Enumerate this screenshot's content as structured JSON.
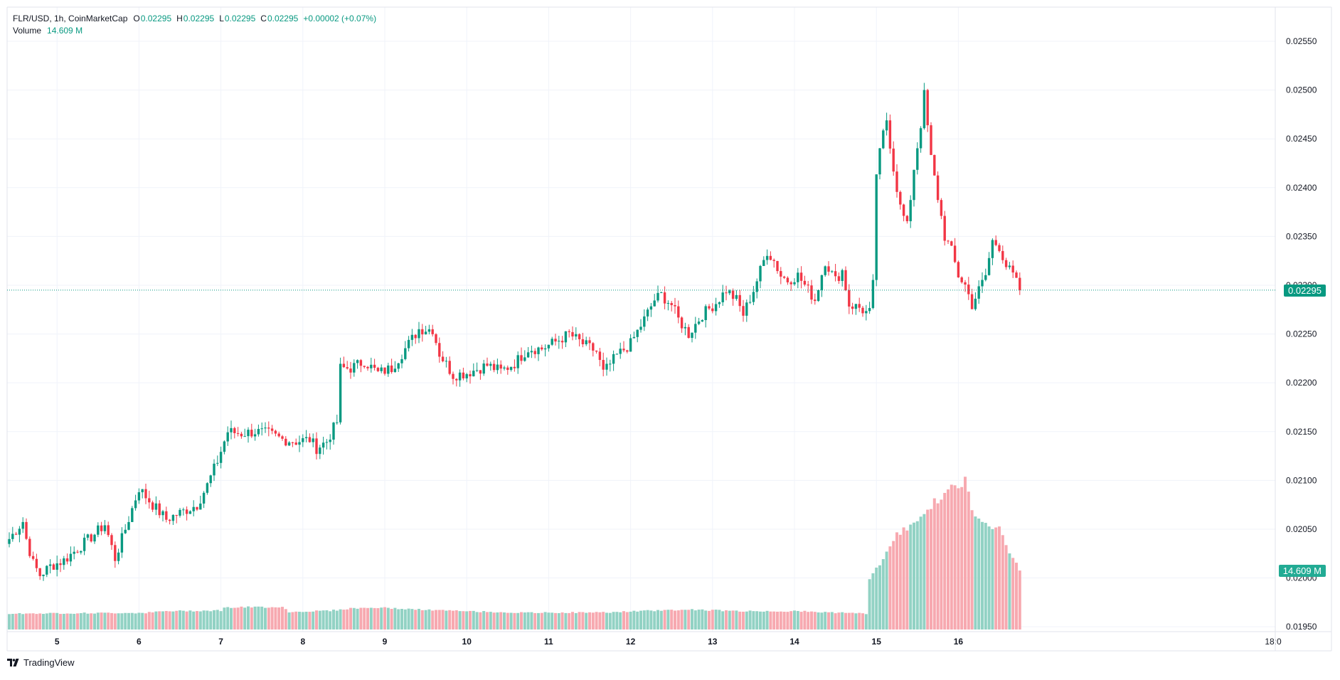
{
  "legend": {
    "symbol": "FLR/USD, 1h, CoinMarketCap",
    "o_label": "O",
    "o_value": "0.02295",
    "h_label": "H",
    "h_value": "0.02295",
    "l_label": "L",
    "l_value": "0.02295",
    "c_label": "C",
    "c_value": "0.02295",
    "change": "+0.00002 (+0.07%)",
    "volume_label": "Volume",
    "volume_value": "14.609 M"
  },
  "last_price_tag": "0.02295",
  "volume_tag": "14.609 M",
  "brand": "TradingView",
  "colors": {
    "up": "#089981",
    "down": "#f23645",
    "up_volume": "#92d2c4",
    "down_volume": "#f7a9b0",
    "grid": "#f0f3fa"
  },
  "chart_data": {
    "type": "candlestick",
    "interval": "1h",
    "x_tick_labels": [
      "5",
      "6",
      "7",
      "8",
      "9",
      "10",
      "11",
      "12",
      "13",
      "14",
      "15",
      "16",
      "18:0"
    ],
    "y_tick_labels": [
      "0.02550",
      "0.02500",
      "0.02450",
      "0.02400",
      "0.02350",
      "0.02300",
      "0.02250",
      "0.02200",
      "0.02150",
      "0.02100",
      "0.02050",
      "0.02000",
      "0.01950"
    ],
    "ylim": [
      0.01945,
      0.02585
    ],
    "last_price": 0.02295,
    "grid": true,
    "close_anchors": [
      [
        0,
        0.0204
      ],
      [
        4,
        0.02058
      ],
      [
        5,
        0.0204
      ],
      [
        7,
        0.02015
      ],
      [
        9,
        0.02003
      ],
      [
        12,
        0.02012
      ],
      [
        16,
        0.02018
      ],
      [
        20,
        0.0203
      ],
      [
        25,
        0.02045
      ],
      [
        28,
        0.02055
      ],
      [
        31,
        0.0202
      ],
      [
        34,
        0.0205
      ],
      [
        38,
        0.02092
      ],
      [
        42,
        0.02075
      ],
      [
        46,
        0.0206
      ],
      [
        49,
        0.02065
      ],
      [
        52,
        0.0207
      ],
      [
        55,
        0.02075
      ],
      [
        58,
        0.02095
      ],
      [
        61,
        0.0212
      ],
      [
        64,
        0.0215
      ],
      [
        68,
        0.02148
      ],
      [
        72,
        0.0215
      ],
      [
        76,
        0.02148
      ],
      [
        80,
        0.02142
      ],
      [
        84,
        0.0214
      ],
      [
        88,
        0.02142
      ],
      [
        90,
        0.02133
      ],
      [
        93,
        0.0214
      ],
      [
        96,
        0.0216
      ],
      [
        97,
        0.02215
      ],
      [
        100,
        0.02215
      ],
      [
        104,
        0.02222
      ],
      [
        108,
        0.0221
      ],
      [
        112,
        0.02215
      ],
      [
        116,
        0.02235
      ],
      [
        120,
        0.02255
      ],
      [
        124,
        0.02255
      ],
      [
        126,
        0.0223
      ],
      [
        130,
        0.02208
      ],
      [
        134,
        0.0221
      ],
      [
        140,
        0.02218
      ],
      [
        144,
        0.02212
      ],
      [
        148,
        0.0222
      ],
      [
        152,
        0.02235
      ],
      [
        156,
        0.02235
      ],
      [
        160,
        0.02242
      ],
      [
        164,
        0.0225
      ],
      [
        168,
        0.0224
      ],
      [
        172,
        0.02232
      ],
      [
        174,
        0.0221
      ],
      [
        178,
        0.02228
      ],
      [
        182,
        0.0224
      ],
      [
        186,
        0.02265
      ],
      [
        189,
        0.02285
      ],
      [
        191,
        0.0229
      ],
      [
        194,
        0.0228
      ],
      [
        196,
        0.02265
      ],
      [
        199,
        0.0225
      ],
      [
        203,
        0.0227
      ],
      [
        207,
        0.02282
      ],
      [
        210,
        0.02295
      ],
      [
        213,
        0.02285
      ],
      [
        215,
        0.0227
      ],
      [
        218,
        0.02295
      ],
      [
        220,
        0.02315
      ],
      [
        222,
        0.02335
      ],
      [
        224,
        0.02325
      ],
      [
        226,
        0.0231
      ],
      [
        228,
        0.02305
      ],
      [
        231,
        0.0231
      ],
      [
        234,
        0.02295
      ],
      [
        236,
        0.02285
      ],
      [
        239,
        0.02325
      ],
      [
        242,
        0.02305
      ],
      [
        244,
        0.02315
      ],
      [
        246,
        0.0228
      ],
      [
        249,
        0.02277
      ],
      [
        251,
        0.02272
      ],
      [
        252,
        0.02272
      ],
      [
        253,
        0.023
      ],
      [
        254,
        0.02415
      ],
      [
        256,
        0.02455
      ],
      [
        257,
        0.0247
      ],
      [
        259,
        0.0242
      ],
      [
        261,
        0.0238
      ],
      [
        263,
        0.0236
      ],
      [
        265,
        0.0242
      ],
      [
        267,
        0.02465
      ],
      [
        268,
        0.02495
      ],
      [
        270,
        0.0243
      ],
      [
        272,
        0.0239
      ],
      [
        274,
        0.0235
      ],
      [
        276,
        0.02335
      ],
      [
        278,
        0.0231
      ],
      [
        280,
        0.023
      ],
      [
        282,
        0.0228
      ],
      [
        284,
        0.02295
      ],
      [
        286,
        0.0231
      ],
      [
        288,
        0.02345
      ],
      [
        290,
        0.0234
      ],
      [
        292,
        0.0232
      ],
      [
        294,
        0.0231
      ],
      [
        296,
        0.02295
      ]
    ],
    "volume_anchors": [
      [
        0,
        0.4
      ],
      [
        40,
        0.42
      ],
      [
        46,
        0.46
      ],
      [
        62,
        0.48
      ],
      [
        63,
        0.55
      ],
      [
        80,
        0.57
      ],
      [
        82,
        0.44
      ],
      [
        95,
        0.48
      ],
      [
        100,
        0.53
      ],
      [
        108,
        0.55
      ],
      [
        120,
        0.5
      ],
      [
        130,
        0.47
      ],
      [
        150,
        0.42
      ],
      [
        175,
        0.43
      ],
      [
        190,
        0.48
      ],
      [
        200,
        0.5
      ],
      [
        215,
        0.46
      ],
      [
        230,
        0.46
      ],
      [
        251,
        0.4
      ],
      [
        252,
        1.25
      ],
      [
        260,
        2.35
      ],
      [
        270,
        3.1
      ],
      [
        277,
        3.6
      ],
      [
        280,
        3.7
      ],
      [
        282,
        3.0
      ],
      [
        290,
        2.5
      ],
      [
        296,
        1.46
      ]
    ],
    "volume_unit": "10M"
  }
}
